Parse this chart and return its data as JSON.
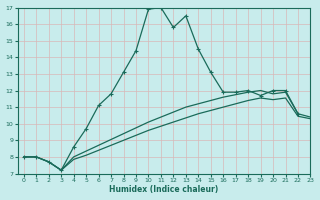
{
  "title": "",
  "xlabel": "Humidex (Indice chaleur)",
  "bg_color": "#c8ecec",
  "grid_color": "#d8b8b8",
  "line_color": "#1a6b5a",
  "xlim": [
    -0.5,
    23
  ],
  "ylim": [
    7,
    17
  ],
  "xticks": [
    0,
    1,
    2,
    3,
    4,
    5,
    6,
    7,
    8,
    9,
    10,
    11,
    12,
    13,
    14,
    15,
    16,
    17,
    18,
    19,
    20,
    21,
    22,
    23
  ],
  "yticks": [
    7,
    8,
    9,
    10,
    11,
    12,
    13,
    14,
    15,
    16,
    17
  ],
  "line1_x": [
    0,
    1,
    2,
    3,
    4,
    5,
    6,
    7,
    8,
    9,
    10,
    11,
    12,
    13,
    14,
    15,
    16,
    17,
    18,
    19,
    20,
    21,
    22
  ],
  "line1_y": [
    8.0,
    8.0,
    7.7,
    7.2,
    8.6,
    9.7,
    11.1,
    11.8,
    13.1,
    14.4,
    16.9,
    17.0,
    15.8,
    16.5,
    14.5,
    13.1,
    11.9,
    11.9,
    12.0,
    11.7,
    12.0,
    12.0,
    10.6
  ],
  "line2_x": [
    0,
    1,
    2,
    3,
    4,
    5,
    6,
    7,
    8,
    9,
    10,
    11,
    12,
    13,
    14,
    15,
    16,
    17,
    18,
    19,
    20,
    21,
    22,
    23
  ],
  "line2_y": [
    8.0,
    8.0,
    7.7,
    7.2,
    8.0,
    8.35,
    8.7,
    9.05,
    9.4,
    9.75,
    10.1,
    10.4,
    10.7,
    11.0,
    11.2,
    11.4,
    11.6,
    11.75,
    11.9,
    12.0,
    11.8,
    11.9,
    10.6,
    10.4
  ],
  "line3_x": [
    0,
    1,
    2,
    3,
    4,
    5,
    6,
    7,
    8,
    9,
    10,
    11,
    12,
    13,
    14,
    15,
    16,
    17,
    18,
    19,
    20,
    21,
    22,
    23
  ],
  "line3_y": [
    8.0,
    8.0,
    7.7,
    7.2,
    7.85,
    8.1,
    8.4,
    8.7,
    9.0,
    9.3,
    9.6,
    9.85,
    10.1,
    10.35,
    10.6,
    10.8,
    11.0,
    11.2,
    11.4,
    11.55,
    11.45,
    11.55,
    10.45,
    10.3
  ]
}
